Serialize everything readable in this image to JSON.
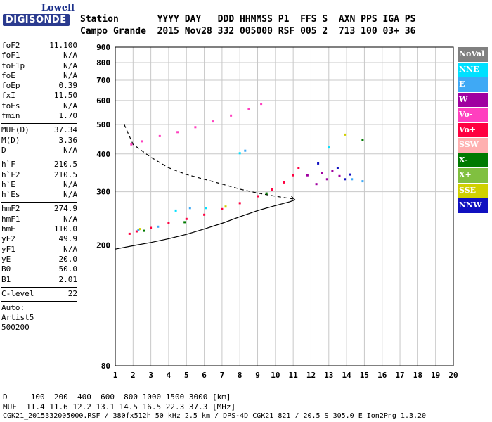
{
  "logo": {
    "line1": "Lowell",
    "line2": "DIGISONDE"
  },
  "header": {
    "row1": "Station       YYYY DAY   DDD HHMMSS P1  FFS S  AXN PPS IGA PS",
    "row2": "Campo Grande  2015 Nov28 332 005000 RSF 005 2  713 100 03+ 36"
  },
  "params_group1": [
    {
      "k": "foF2",
      "v": "11.100"
    },
    {
      "k": "foF1",
      "v": "N/A"
    },
    {
      "k": "foF1p",
      "v": "N/A"
    },
    {
      "k": "foE",
      "v": "N/A"
    },
    {
      "k": "foEp",
      "v": "0.39"
    },
    {
      "k": "fxI",
      "v": "11.50"
    },
    {
      "k": "foEs",
      "v": "N/A"
    },
    {
      "k": "fmin",
      "v": "1.70"
    }
  ],
  "params_group2": [
    {
      "k": "MUF(D)",
      "v": "37.34"
    },
    {
      "k": "M(D)",
      "v": "3.36"
    },
    {
      "k": "D",
      "v": "N/A"
    }
  ],
  "params_group3": [
    {
      "k": "h`F",
      "v": "210.5"
    },
    {
      "k": "h`F2",
      "v": "210.5"
    },
    {
      "k": "h`E",
      "v": "N/A"
    },
    {
      "k": "h`Es",
      "v": "N/A"
    }
  ],
  "params_group4": [
    {
      "k": "hmF2",
      "v": "274.9"
    },
    {
      "k": "hmF1",
      "v": "N/A"
    },
    {
      "k": "hmE",
      "v": "110.0"
    },
    {
      "k": "yF2",
      "v": "49.9"
    },
    {
      "k": "yF1",
      "v": "N/A"
    },
    {
      "k": "yE",
      "v": "20.0"
    },
    {
      "k": "B0",
      "v": "50.0"
    },
    {
      "k": "B1",
      "v": "2.01"
    }
  ],
  "params_group5": [
    {
      "k": "C-level",
      "v": "22"
    }
  ],
  "auto": {
    "l1": "Auto:",
    "l2": "Artist5",
    "l3": "500200"
  },
  "legend": [
    {
      "label": "NoVal",
      "bg": "#808080",
      "fg": "#ffffff"
    },
    {
      "label": "NNE",
      "bg": "#00e0ff",
      "fg": "#ffffff"
    },
    {
      "label": "E",
      "bg": "#3fa9f5",
      "fg": "#ffffff"
    },
    {
      "label": "W",
      "bg": "#a000a0",
      "fg": "#ffffff"
    },
    {
      "label": "Vo-",
      "bg": "#ff3fbf",
      "fg": "#ffffff"
    },
    {
      "label": "Vo+",
      "bg": "#ff0040",
      "fg": "#ffffff"
    },
    {
      "label": "SSW",
      "bg": "#ffb0b0",
      "fg": "#ffffff"
    },
    {
      "label": "X-",
      "bg": "#007a00",
      "fg": "#ffffff"
    },
    {
      "label": "X+",
      "bg": "#80c040",
      "fg": "#ffffff"
    },
    {
      "label": "SSE",
      "bg": "#d0d000",
      "fg": "#ffffff"
    },
    {
      "label": "NNW",
      "bg": "#1010c0",
      "fg": "#ffffff"
    }
  ],
  "footer": {
    "d_row": "D     100  200  400  600  800 1000 1500 3000 [km]",
    "muf_row": "MUF  11.4 11.6 12.2 13.1 14.5 16.5 22.3 37.3 [MHz]",
    "info_row": "CGK21_2015332005000.RSF / 380fx512h 50 kHz 2.5 km / DPS-4D CGK21 821 / 20.5 S 305.0 E Ion2Png 1.3.20"
  },
  "chart_data": {
    "type": "scatter",
    "xlabel": "",
    "ylabel": "",
    "xlim": [
      1,
      20
    ],
    "ylim": [
      80,
      900
    ],
    "y_scale": "log",
    "x_ticks": [
      1,
      2,
      3,
      4,
      5,
      6,
      7,
      8,
      9,
      10,
      11,
      12,
      13,
      14,
      15,
      16,
      17,
      18,
      19,
      20
    ],
    "y_ticks": [
      80,
      200,
      300,
      400,
      500,
      600,
      700,
      800,
      900
    ],
    "grid": true,
    "series": [
      {
        "color": "#ff0040",
        "points": [
          [
            1.8,
            218
          ],
          [
            2.2,
            222
          ],
          [
            3,
            228
          ],
          [
            4,
            236
          ],
          [
            5,
            244
          ],
          [
            6,
            252
          ],
          [
            7,
            263
          ],
          [
            8,
            275
          ],
          [
            9,
            290
          ],
          [
            9.8,
            305
          ],
          [
            10.5,
            322
          ],
          [
            11,
            340
          ],
          [
            11.3,
            360
          ]
        ]
      },
      {
        "color": "#ff3fbf",
        "points": [
          [
            1.9,
            430
          ],
          [
            2.5,
            440
          ],
          [
            3.5,
            458
          ],
          [
            4.5,
            472
          ],
          [
            5.5,
            490
          ],
          [
            6.5,
            512
          ],
          [
            7.5,
            535
          ],
          [
            8.5,
            562
          ],
          [
            9.2,
            585
          ]
        ]
      },
      {
        "color": "#a000a0",
        "points": [
          [
            11.8,
            340
          ],
          [
            12.6,
            345
          ],
          [
            12.9,
            330
          ],
          [
            13.2,
            352
          ],
          [
            13.6,
            338
          ],
          [
            12.3,
            318
          ]
        ]
      },
      {
        "color": "#1010c0",
        "points": [
          [
            13.5,
            360
          ],
          [
            13.9,
            330
          ],
          [
            14.2,
            342
          ],
          [
            12.4,
            372
          ]
        ]
      },
      {
        "color": "#3fa9f5",
        "points": [
          [
            14.3,
            330
          ],
          [
            14.9,
            325
          ],
          [
            2.3,
            225
          ],
          [
            3.4,
            230
          ],
          [
            5.2,
            265
          ],
          [
            8.3,
            410
          ]
        ]
      },
      {
        "color": "#00e0ff",
        "points": [
          [
            4.4,
            260
          ],
          [
            6.1,
            265
          ],
          [
            8,
            402
          ],
          [
            13,
            420
          ]
        ]
      },
      {
        "color": "#007a00",
        "points": [
          [
            2.6,
            223
          ],
          [
            4.9,
            238
          ],
          [
            9.5,
            296
          ],
          [
            14.9,
            445
          ]
        ]
      },
      {
        "color": "#d0d000",
        "points": [
          [
            2.4,
            226
          ],
          [
            7.2,
            268
          ],
          [
            13.9,
            463
          ]
        ]
      }
    ],
    "lines": [
      {
        "style": "dashed",
        "color": "#000000",
        "points": [
          [
            1.5,
            500
          ],
          [
            2,
            430
          ],
          [
            3,
            390
          ],
          [
            4,
            360
          ],
          [
            5,
            342
          ],
          [
            6,
            330
          ],
          [
            7,
            318
          ],
          [
            8,
            306
          ],
          [
            9,
            297
          ],
          [
            10,
            290
          ],
          [
            11,
            284
          ]
        ]
      },
      {
        "style": "solid",
        "color": "#000000",
        "points": [
          [
            1,
            194
          ],
          [
            2,
            199
          ],
          [
            3,
            204
          ],
          [
            4,
            210
          ],
          [
            5,
            217
          ],
          [
            6,
            226
          ],
          [
            7,
            236
          ],
          [
            8,
            248
          ],
          [
            9,
            260
          ],
          [
            10,
            270
          ],
          [
            10.8,
            278
          ],
          [
            11.1,
            282
          ],
          [
            10.9,
            290
          ]
        ]
      }
    ]
  }
}
